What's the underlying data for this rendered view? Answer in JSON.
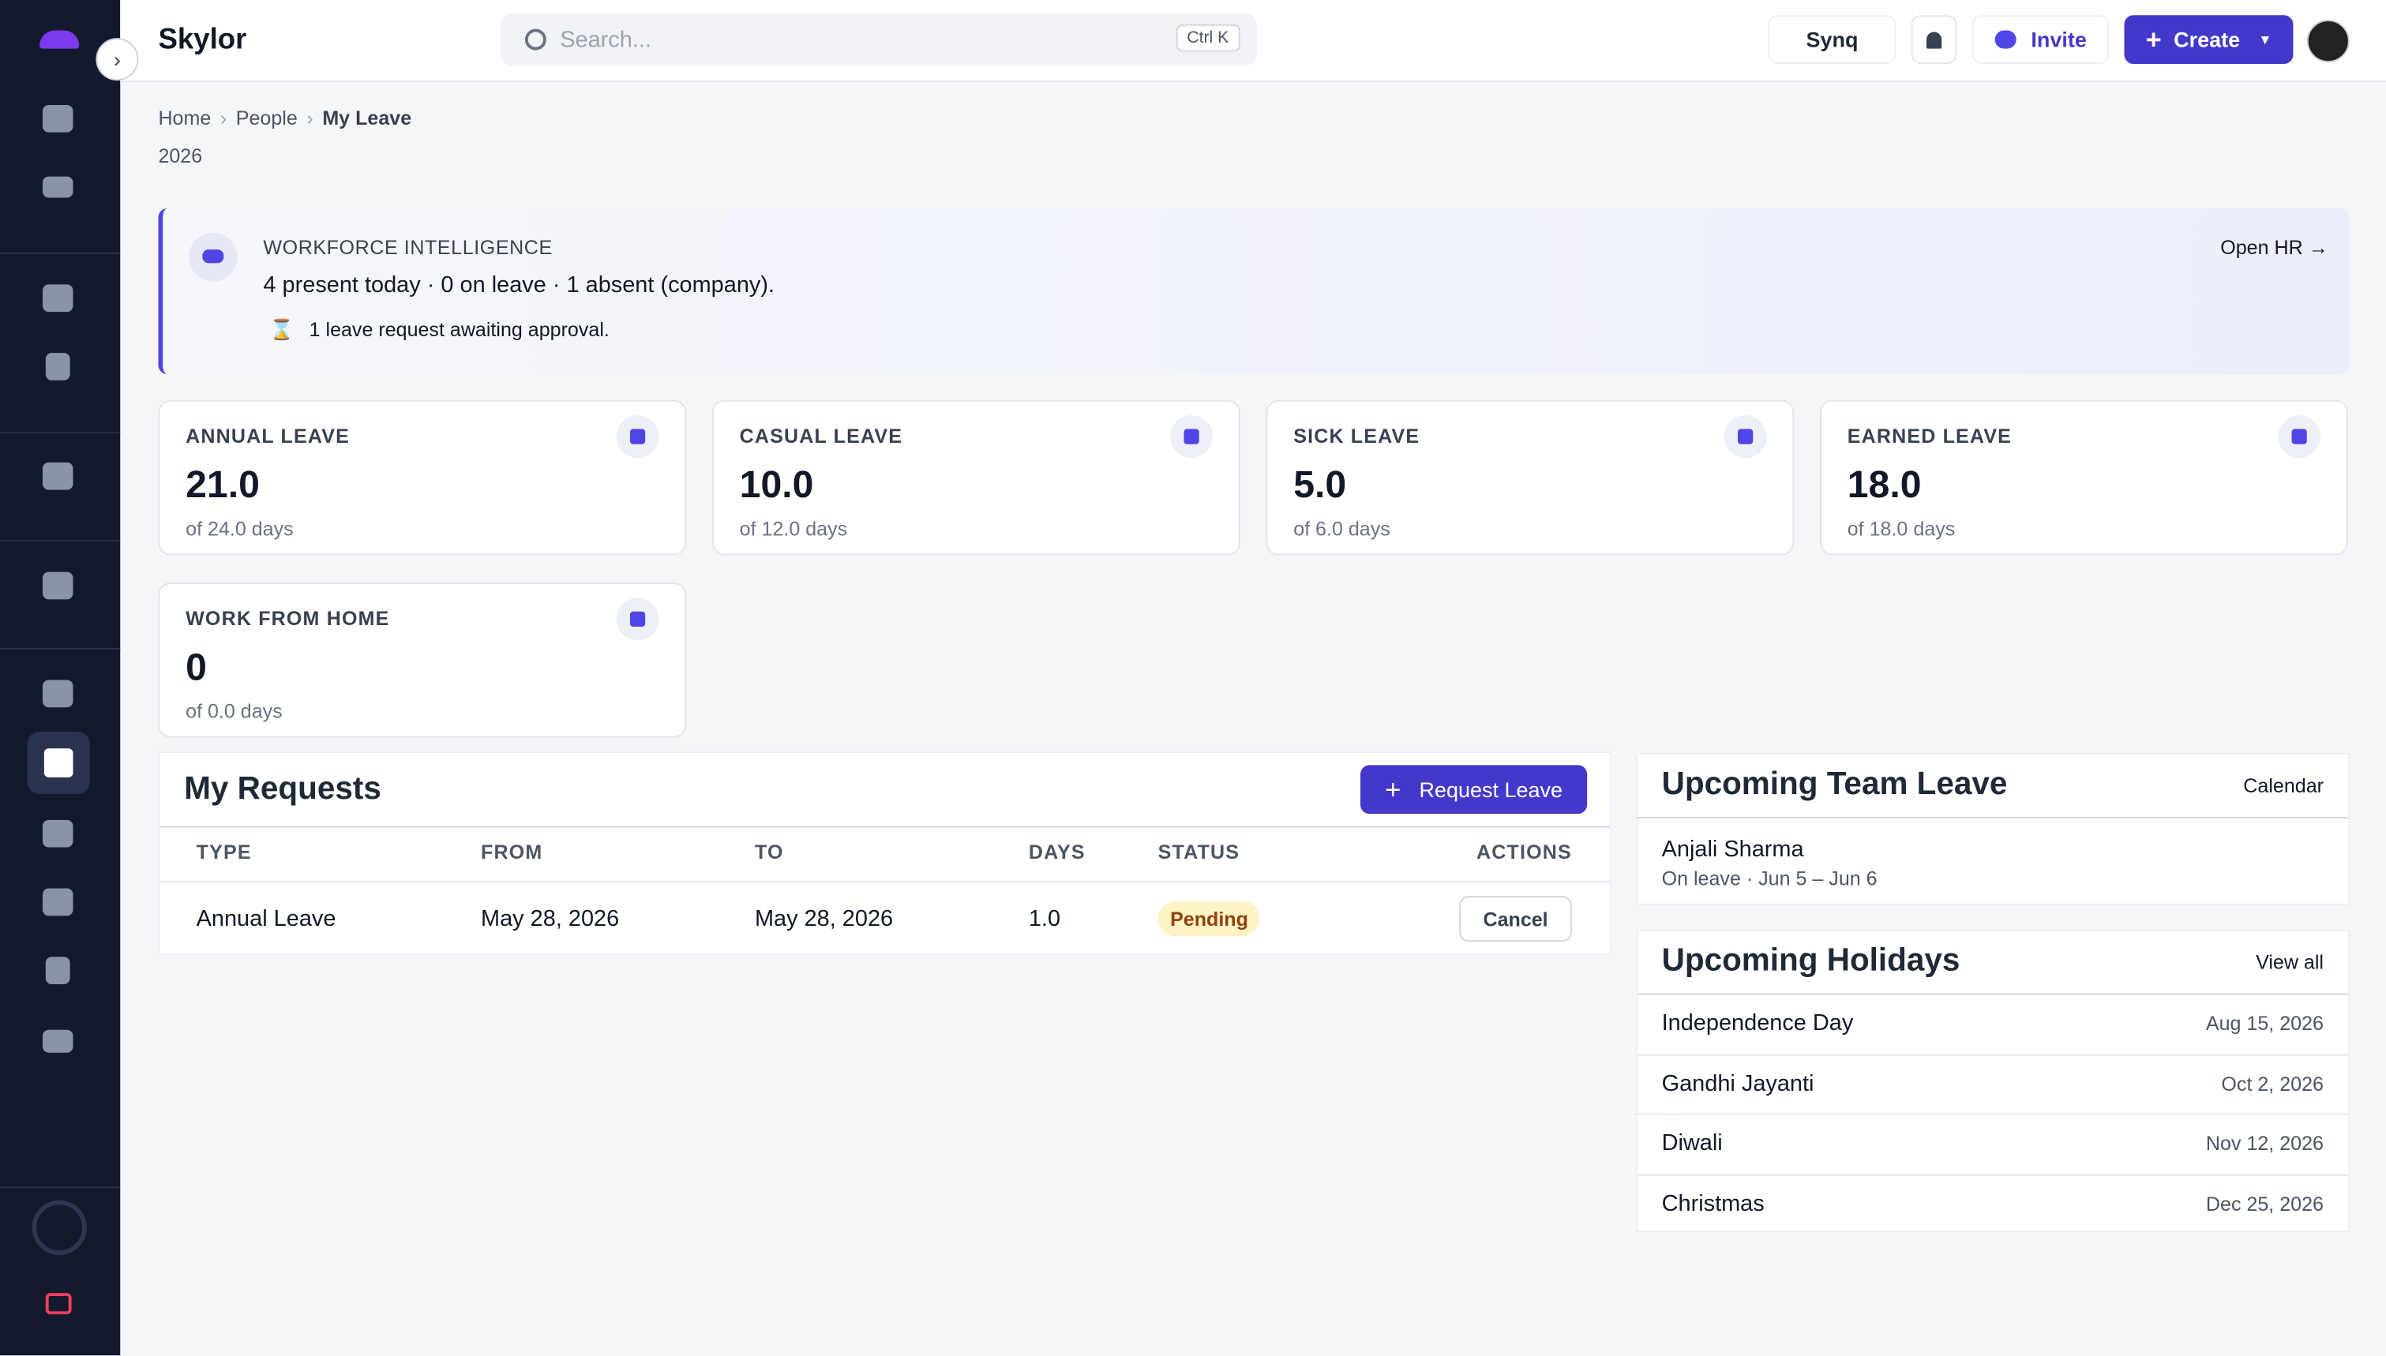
{
  "app": {
    "brand": "Skylor",
    "search_placeholder": "Search...",
    "search_shortcut": "Ctrl K",
    "workspace": "Synq",
    "invite": "Invite",
    "create": "Create"
  },
  "breadcrumb": [
    "Home",
    "People",
    "My Leave"
  ],
  "year": "2026",
  "banner": {
    "title": "WORKFORCE INTELLIGENCE",
    "summary": "4 present today · 0 on leave · 1 absent (company).",
    "note": "1 leave request awaiting approval.",
    "link": "Open HR"
  },
  "balances": [
    {
      "label": "ANNUAL LEAVE",
      "value": "21.0",
      "total": "of 24.0 days"
    },
    {
      "label": "CASUAL LEAVE",
      "value": "10.0",
      "total": "of 12.0 days"
    },
    {
      "label": "SICK LEAVE",
      "value": "5.0",
      "total": "of 6.0 days"
    },
    {
      "label": "EARNED LEAVE",
      "value": "18.0",
      "total": "of 18.0 days"
    },
    {
      "label": "WORK FROM HOME",
      "value": "0",
      "total": "of 0.0 days"
    }
  ],
  "requests": {
    "title": "My Requests",
    "action": "Request Leave",
    "columns": [
      "TYPE",
      "FROM",
      "TO",
      "DAYS",
      "STATUS",
      "ACTIONS"
    ],
    "rows": [
      [
        "Annual Leave",
        "May 28, 2026",
        "May 28, 2026",
        "1.0",
        "Pending",
        "Cancel"
      ]
    ]
  },
  "team_leave": {
    "title": "Upcoming Team Leave",
    "link": "Calendar",
    "items": [
      {
        "name": "Anjali Sharma",
        "detail": "On leave · Jun 5 – Jun 6"
      }
    ]
  },
  "holidays": {
    "title": "Upcoming Holidays",
    "link": "View all",
    "items": [
      {
        "name": "Independence Day",
        "date": "Aug 15, 2026"
      },
      {
        "name": "Gandhi Jayanti",
        "date": "Oct 2, 2026"
      },
      {
        "name": "Diwali",
        "date": "Nov 12, 2026"
      },
      {
        "name": "Christmas",
        "date": "Dec 25, 2026"
      }
    ]
  }
}
